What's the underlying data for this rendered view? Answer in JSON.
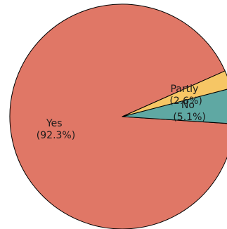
{
  "chart_data": {
    "type": "pie",
    "slices": [
      {
        "label": "Yes",
        "pct_label": "(92.3%)",
        "value": 92.3,
        "color": "#e07766"
      },
      {
        "label": "No",
        "pct_label": "(5.1%)",
        "value": 5.1,
        "color": "#5fa8a3"
      },
      {
        "label": "Partly",
        "pct_label": "(2.6%)",
        "value": 2.6,
        "color": "#f6c665"
      }
    ],
    "start_angle_deg": 24,
    "direction": "counterclockwise"
  }
}
